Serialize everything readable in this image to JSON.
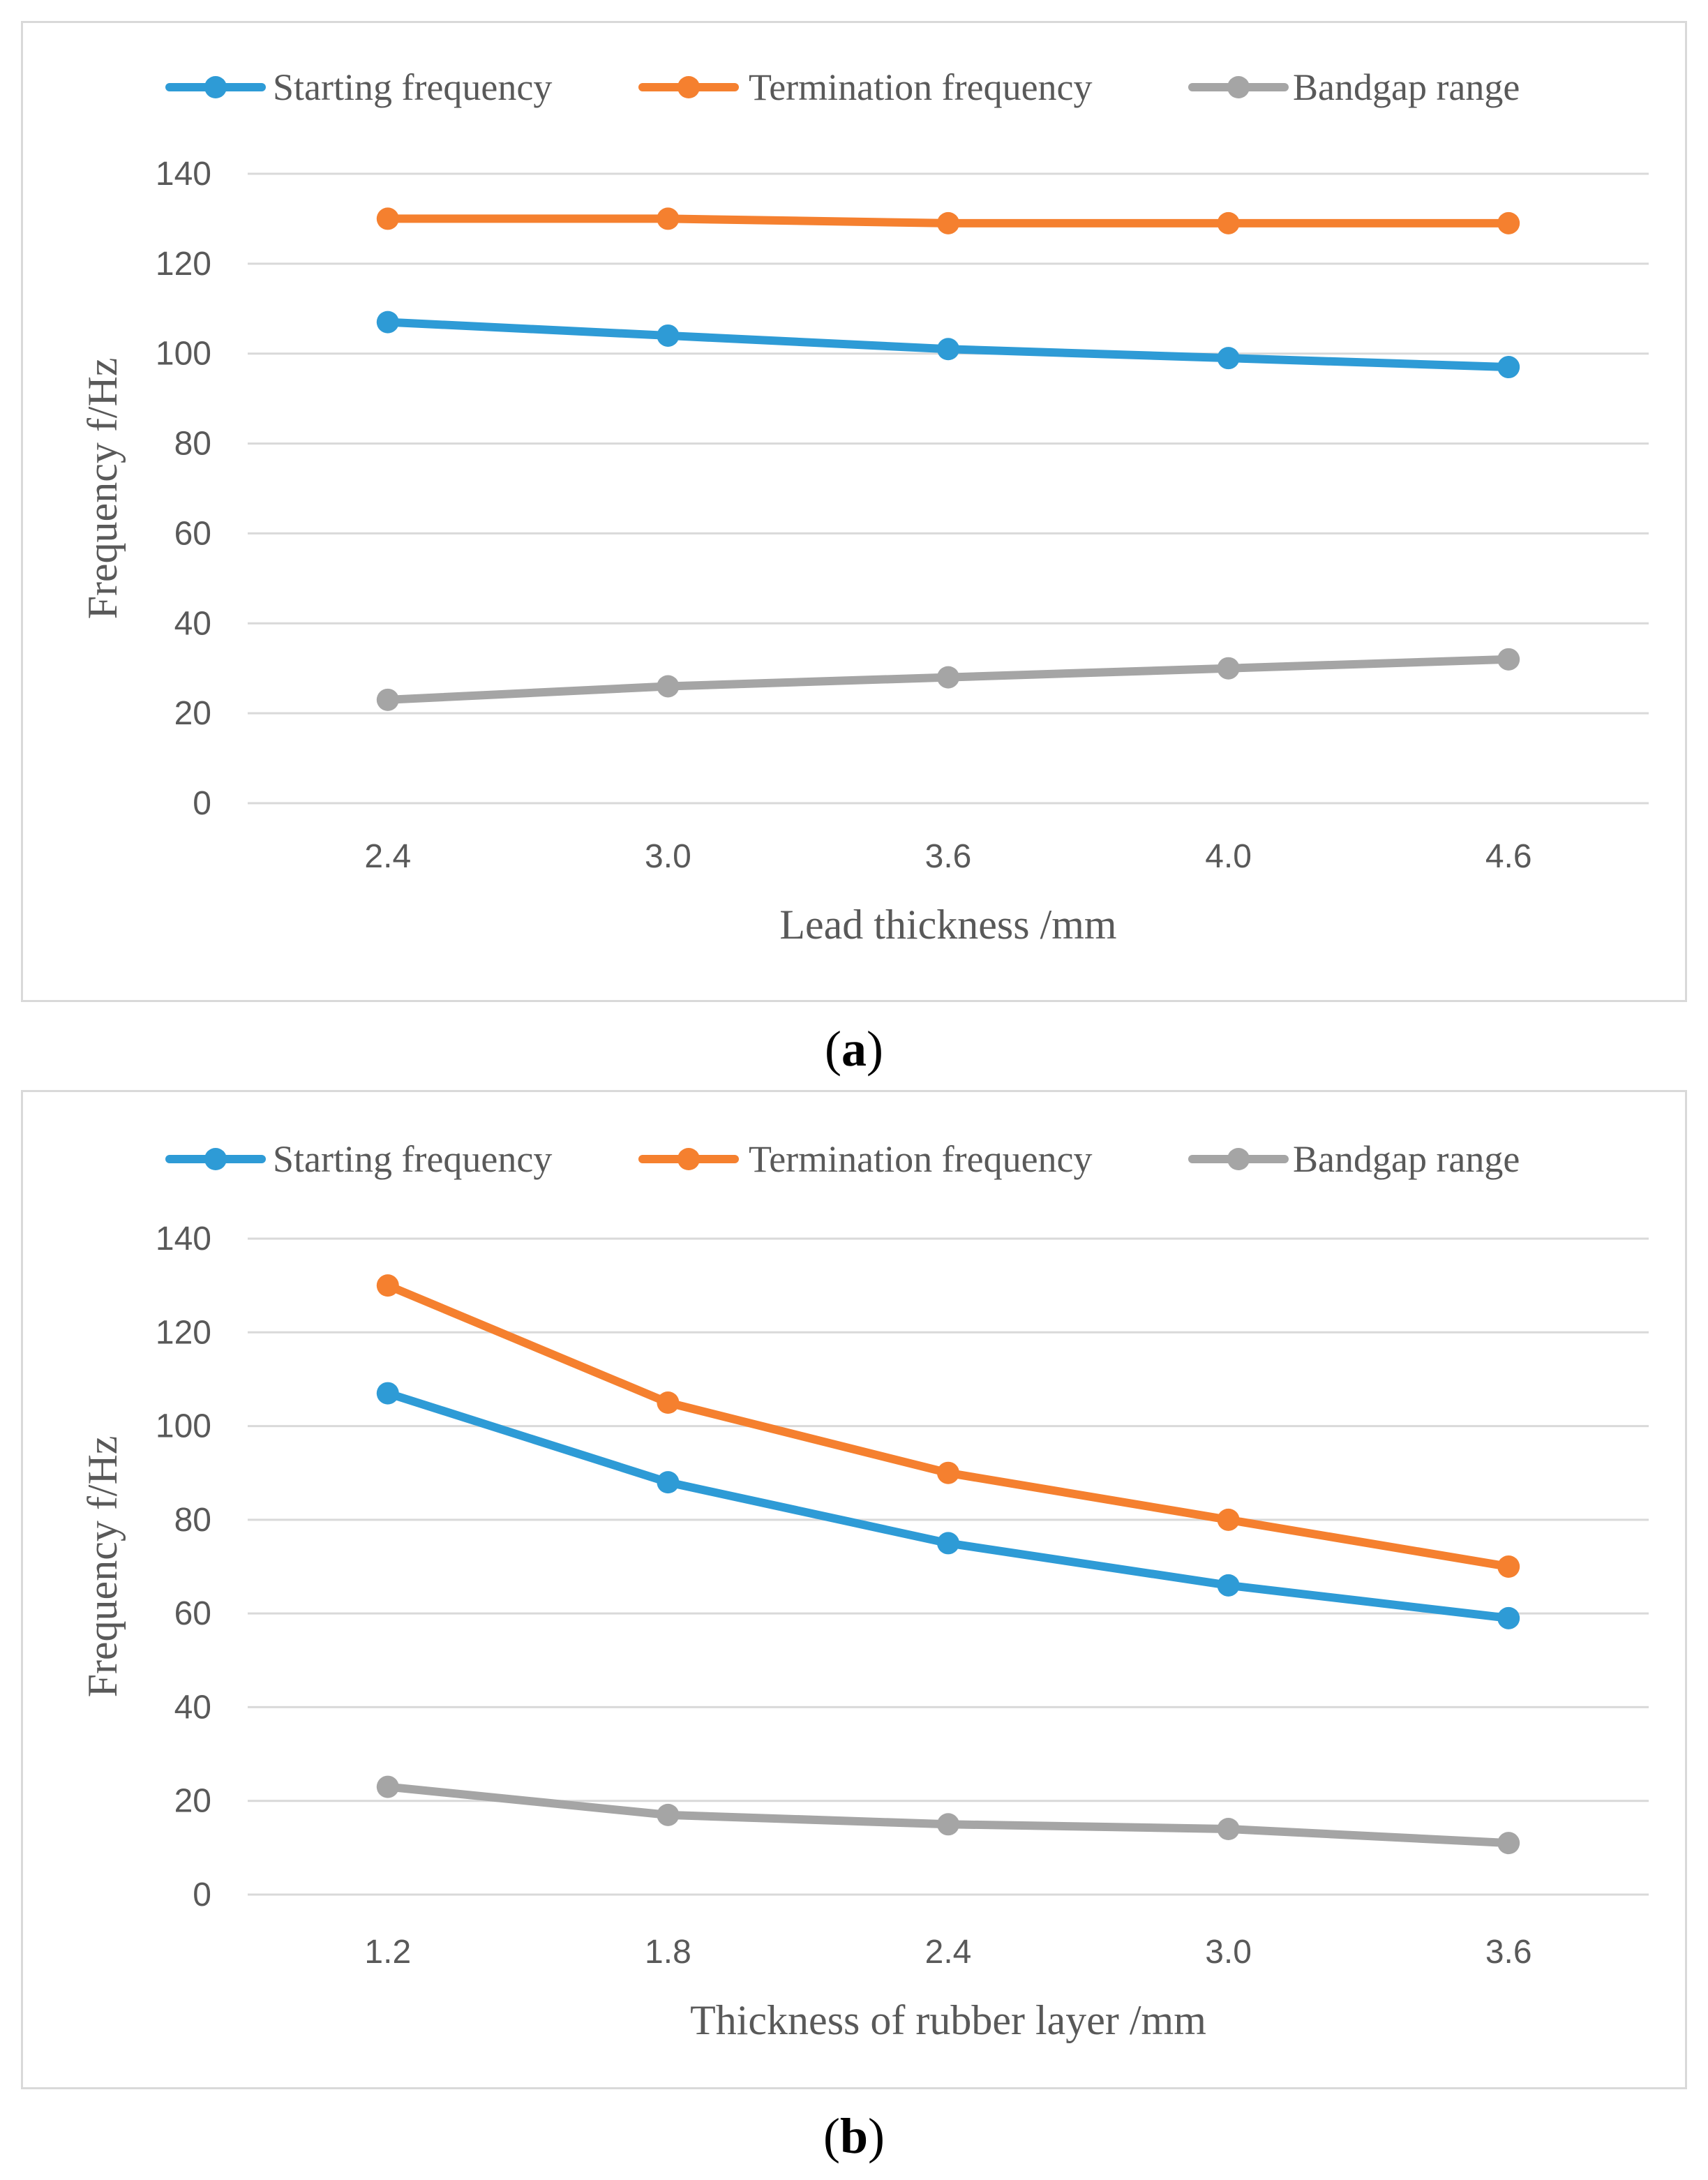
{
  "colors": {
    "starting": "#2e9bd6",
    "termination": "#f5802f",
    "bandgap": "#a5a5a5",
    "grid": "#d9d9d9",
    "text": "#595959"
  },
  "legend": {
    "starting": "Starting frequency",
    "termination": "Termination frequency",
    "bandgap": "Bandgap range"
  },
  "captions": {
    "a_open": "(",
    "a_letter": "a",
    "a_close": ")",
    "b_open": "(",
    "b_letter": "b",
    "b_close": ")"
  },
  "chart_data": [
    {
      "type": "line",
      "title": "",
      "xlabel": "Lead  thickness /mm",
      "ylabel": "Frequency  f/Hz",
      "categories": [
        "2.4",
        "3.0",
        "3.6",
        "4.0",
        "4.6"
      ],
      "yticks": [
        0,
        20,
        40,
        60,
        80,
        100,
        120,
        140
      ],
      "ylim": [
        0,
        140
      ],
      "grid": true,
      "legend_position": "top",
      "series": [
        {
          "name": "Starting frequency",
          "key": "starting",
          "values": [
            107,
            104,
            101,
            99,
            97
          ]
        },
        {
          "name": "Termination frequency",
          "key": "termination",
          "values": [
            130,
            130,
            129,
            129,
            129
          ]
        },
        {
          "name": "Bandgap range",
          "key": "bandgap",
          "values": [
            23,
            26,
            28,
            30,
            32
          ]
        }
      ]
    },
    {
      "type": "line",
      "title": "",
      "xlabel": "Thickness  of rubber layer /mm",
      "ylabel": "Frequency  f/Hz",
      "categories": [
        "1.2",
        "1.8",
        "2.4",
        "3.0",
        "3.6"
      ],
      "yticks": [
        0,
        20,
        40,
        60,
        80,
        100,
        120,
        140
      ],
      "ylim": [
        0,
        140
      ],
      "grid": true,
      "legend_position": "top",
      "series": [
        {
          "name": "Starting frequency",
          "key": "starting",
          "values": [
            107,
            88,
            75,
            66,
            59
          ]
        },
        {
          "name": "Termination frequency",
          "key": "termination",
          "values": [
            130,
            105,
            90,
            80,
            70
          ]
        },
        {
          "name": "Bandgap range",
          "key": "bandgap",
          "values": [
            23,
            17,
            15,
            14,
            11
          ]
        }
      ]
    }
  ]
}
